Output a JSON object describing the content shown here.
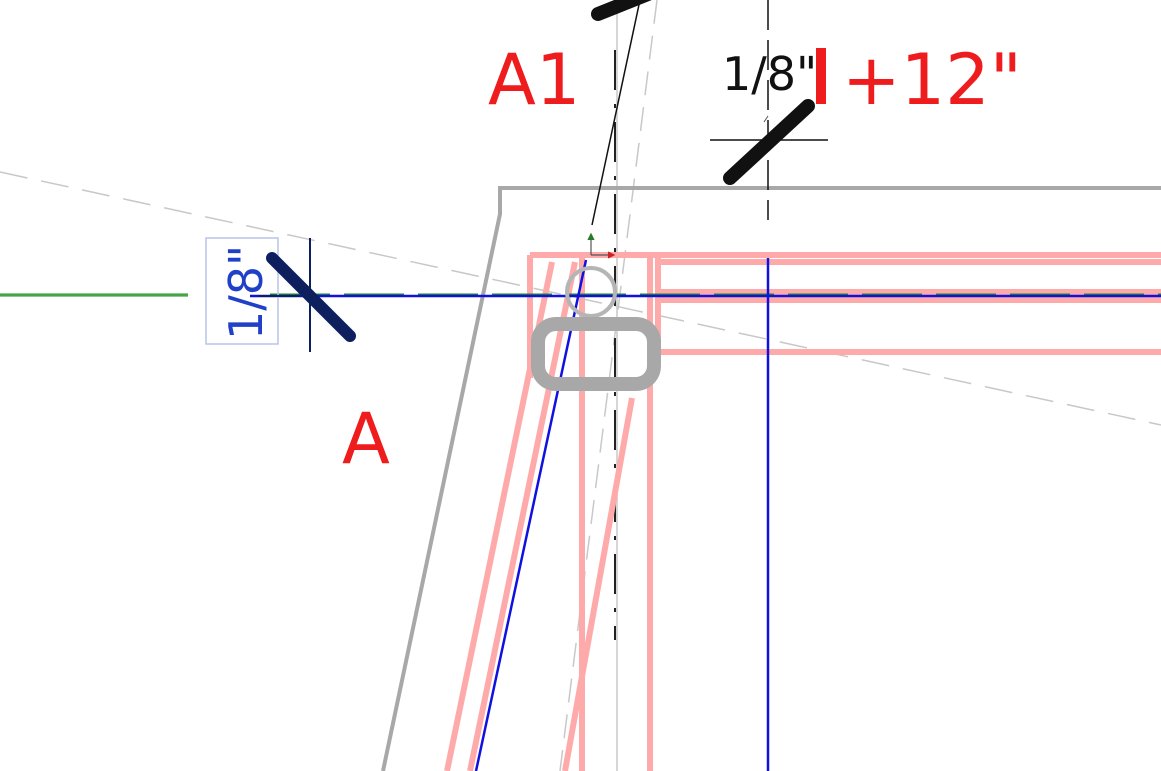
{
  "drawing": {
    "grid_label_a1": "A1",
    "grid_label_a": "A",
    "level_label": "+12\"",
    "dim_top_text": "1/8\"",
    "dim_left_text": "1/8\""
  },
  "colors": {
    "grid_label": "#ee1c1c",
    "framing": "#ff9a9a",
    "wall_outline": "#a8a8a8",
    "blue_line": "#1010e0",
    "green_line": "#1e8a1e",
    "dim_dark": "#0d1f5c",
    "dim_black": "#111111"
  },
  "icons": [
    "circle-marker-icon",
    "rounded-rect-handle-icon",
    "move-arrows-icon"
  ]
}
